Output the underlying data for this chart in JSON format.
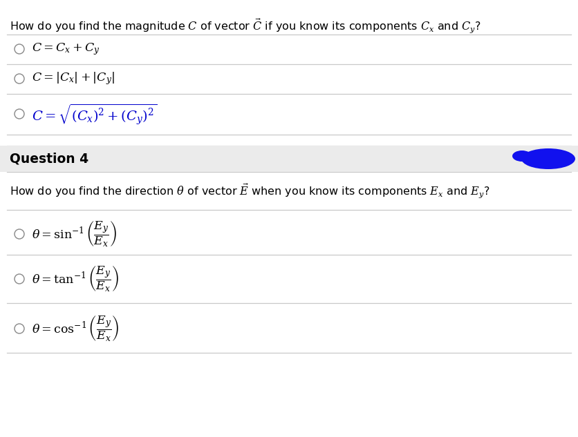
{
  "bg_color": "#ffffff",
  "gray_bg": "#ebebeb",
  "text_color": "#000000",
  "blue_color": "#0000cc",
  "line_color": "#cccccc",
  "q3_question": "How do you find the magnitude $C$ of vector $\\vec{C}$ if you know its components $C_x$ and $C_y$?",
  "q3_options": [
    "$C = C_x + C_y$",
    "$C = |C_x| + |C_y|$",
    "$C = \\sqrt{(C_x)^2 + (C_y)^2}$"
  ],
  "q4_label": "Question 4",
  "q4_question": "How do you find the direction $\\theta$ of vector $\\vec{E}$ when you know its components $E_x$ and $E_y$?",
  "q4_options": [
    "$\\theta = \\sin^{-1}\\left(\\dfrac{E_y}{E_x}\\right)$",
    "$\\theta = \\tan^{-1}\\left(\\dfrac{E_y}{E_x}\\right)$",
    "$\\theta = \\cos^{-1}\\left(\\dfrac{E_y}{E_x}\\right)$"
  ],
  "figsize": [
    8.36,
    6.33
  ],
  "dpi": 100
}
